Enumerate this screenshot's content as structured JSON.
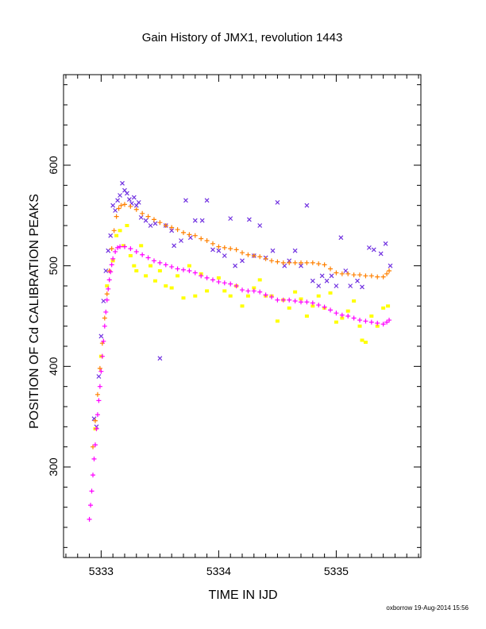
{
  "chart_data": {
    "type": "scatter",
    "title": "Gain History of JMX1, revolution 1443",
    "xlabel": "TIME IN IJD",
    "ylabel": "POSITION OF Cd CALIBRATION PEAKS",
    "footer": "oxborrow 19-Aug-2014 15:56",
    "xlim": [
      5332.68,
      5335.72
    ],
    "ylim": [
      210,
      690
    ],
    "xticks": [
      5333,
      5334,
      5335
    ],
    "yticks": [
      300,
      400,
      500,
      600
    ],
    "grid": false,
    "legend": "none",
    "series": [
      {
        "marker": "cross",
        "color": "#7030e0",
        "points": [
          [
            5332.94,
            348
          ],
          [
            5332.96,
            340
          ],
          [
            5332.98,
            390
          ],
          [
            5333.0,
            430
          ],
          [
            5333.02,
            465
          ],
          [
            5333.04,
            495
          ],
          [
            5333.06,
            515
          ],
          [
            5333.08,
            530
          ],
          [
            5333.1,
            560
          ],
          [
            5333.12,
            555
          ],
          [
            5333.14,
            565
          ],
          [
            5333.16,
            570
          ],
          [
            5333.18,
            582
          ],
          [
            5333.2,
            575
          ],
          [
            5333.22,
            572
          ],
          [
            5333.24,
            566
          ],
          [
            5333.26,
            562
          ],
          [
            5333.28,
            568
          ],
          [
            5333.3,
            560
          ],
          [
            5333.32,
            563
          ],
          [
            5333.34,
            548
          ],
          [
            5333.38,
            545
          ],
          [
            5333.42,
            540
          ],
          [
            5333.46,
            542
          ],
          [
            5333.5,
            408
          ],
          [
            5333.55,
            540
          ],
          [
            5333.6,
            535
          ],
          [
            5333.62,
            520
          ],
          [
            5333.68,
            525
          ],
          [
            5333.72,
            565
          ],
          [
            5333.76,
            528
          ],
          [
            5333.8,
            545
          ],
          [
            5333.86,
            545
          ],
          [
            5333.9,
            565
          ],
          [
            5333.95,
            516
          ],
          [
            5334.0,
            515
          ],
          [
            5334.05,
            510
          ],
          [
            5334.1,
            547
          ],
          [
            5334.14,
            500
          ],
          [
            5334.2,
            505
          ],
          [
            5334.26,
            546
          ],
          [
            5334.3,
            510
          ],
          [
            5334.35,
            540
          ],
          [
            5334.4,
            508
          ],
          [
            5334.46,
            515
          ],
          [
            5334.5,
            563
          ],
          [
            5334.56,
            500
          ],
          [
            5334.6,
            505
          ],
          [
            5334.65,
            515
          ],
          [
            5334.7,
            500
          ],
          [
            5334.75,
            560
          ],
          [
            5334.8,
            485
          ],
          [
            5334.85,
            480
          ],
          [
            5334.88,
            490
          ],
          [
            5334.92,
            485
          ],
          [
            5334.96,
            490
          ],
          [
            5335.0,
            480
          ],
          [
            5335.04,
            528
          ],
          [
            5335.08,
            495
          ],
          [
            5335.12,
            480
          ],
          [
            5335.18,
            485
          ],
          [
            5335.22,
            479
          ],
          [
            5335.28,
            518
          ],
          [
            5335.32,
            516
          ],
          [
            5335.38,
            512
          ],
          [
            5335.42,
            522
          ],
          [
            5335.46,
            500
          ]
        ]
      },
      {
        "marker": "square",
        "color": "#ffff00",
        "points": [
          [
            5332.95,
            338
          ],
          [
            5333.0,
            410
          ],
          [
            5333.05,
            480
          ],
          [
            5333.1,
            505
          ],
          [
            5333.13,
            530
          ],
          [
            5333.16,
            535
          ],
          [
            5333.19,
            520
          ],
          [
            5333.22,
            540
          ],
          [
            5333.25,
            510
          ],
          [
            5333.28,
            500
          ],
          [
            5333.3,
            495
          ],
          [
            5333.34,
            520
          ],
          [
            5333.38,
            490
          ],
          [
            5333.42,
            500
          ],
          [
            5333.46,
            485
          ],
          [
            5333.5,
            495
          ],
          [
            5333.55,
            480
          ],
          [
            5333.6,
            478
          ],
          [
            5333.65,
            490
          ],
          [
            5333.7,
            468
          ],
          [
            5333.75,
            500
          ],
          [
            5333.8,
            470
          ],
          [
            5333.85,
            492
          ],
          [
            5333.9,
            475
          ],
          [
            5334.0,
            488
          ],
          [
            5334.05,
            475
          ],
          [
            5334.1,
            470
          ],
          [
            5334.15,
            480
          ],
          [
            5334.2,
            460
          ],
          [
            5334.25,
            470
          ],
          [
            5334.3,
            478
          ],
          [
            5334.35,
            486
          ],
          [
            5334.4,
            470
          ],
          [
            5334.45,
            470
          ],
          [
            5334.5,
            445
          ],
          [
            5334.55,
            466
          ],
          [
            5334.6,
            458
          ],
          [
            5334.65,
            474
          ],
          [
            5334.7,
            467
          ],
          [
            5334.75,
            450
          ],
          [
            5334.8,
            460
          ],
          [
            5334.85,
            470
          ],
          [
            5334.9,
            458
          ],
          [
            5334.95,
            473
          ],
          [
            5335.0,
            444
          ],
          [
            5335.05,
            448
          ],
          [
            5335.1,
            455
          ],
          [
            5335.15,
            465
          ],
          [
            5335.2,
            440
          ],
          [
            5335.22,
            426
          ],
          [
            5335.25,
            424
          ],
          [
            5335.3,
            450
          ],
          [
            5335.35,
            440
          ],
          [
            5335.4,
            458
          ],
          [
            5335.44,
            460
          ]
        ]
      },
      {
        "marker": "plus",
        "color": "#ff8000",
        "points": [
          [
            5332.93,
            320
          ],
          [
            5332.95,
            346
          ],
          [
            5332.97,
            372
          ],
          [
            5332.99,
            398
          ],
          [
            5333.01,
            423
          ],
          [
            5333.03,
            448
          ],
          [
            5333.05,
            472
          ],
          [
            5333.07,
            495
          ],
          [
            5333.09,
            517
          ],
          [
            5333.11,
            535
          ],
          [
            5333.13,
            549
          ],
          [
            5333.15,
            557
          ],
          [
            5333.17,
            560
          ],
          [
            5333.2,
            561
          ],
          [
            5333.25,
            559
          ],
          [
            5333.3,
            556
          ],
          [
            5333.35,
            552
          ],
          [
            5333.4,
            549
          ],
          [
            5333.45,
            546
          ],
          [
            5333.5,
            543
          ],
          [
            5333.55,
            540
          ],
          [
            5333.6,
            538
          ],
          [
            5333.65,
            536
          ],
          [
            5333.7,
            533
          ],
          [
            5333.75,
            531
          ],
          [
            5333.8,
            530
          ],
          [
            5333.85,
            527
          ],
          [
            5333.9,
            525
          ],
          [
            5333.95,
            522
          ],
          [
            5334.0,
            519
          ],
          [
            5334.05,
            518
          ],
          [
            5334.1,
            517
          ],
          [
            5334.15,
            516
          ],
          [
            5334.2,
            513
          ],
          [
            5334.25,
            511
          ],
          [
            5334.3,
            510
          ],
          [
            5334.35,
            509
          ],
          [
            5334.4,
            507
          ],
          [
            5334.45,
            505
          ],
          [
            5334.5,
            504
          ],
          [
            5334.55,
            503
          ],
          [
            5334.6,
            503
          ],
          [
            5334.65,
            503
          ],
          [
            5334.7,
            503
          ],
          [
            5334.75,
            503
          ],
          [
            5334.8,
            503
          ],
          [
            5334.85,
            502
          ],
          [
            5334.9,
            501
          ],
          [
            5334.95,
            497
          ],
          [
            5335.0,
            493
          ],
          [
            5335.05,
            492
          ],
          [
            5335.1,
            492
          ],
          [
            5335.15,
            491
          ],
          [
            5335.2,
            491
          ],
          [
            5335.25,
            490
          ],
          [
            5335.3,
            490
          ],
          [
            5335.35,
            489
          ],
          [
            5335.4,
            489
          ],
          [
            5335.43,
            492
          ],
          [
            5335.45,
            495
          ]
        ]
      },
      {
        "marker": "plus",
        "color": "#ff00ff",
        "points": [
          [
            5332.9,
            248
          ],
          [
            5332.91,
            262
          ],
          [
            5332.92,
            276
          ],
          [
            5332.93,
            292
          ],
          [
            5332.94,
            308
          ],
          [
            5332.95,
            322
          ],
          [
            5332.96,
            338
          ],
          [
            5332.97,
            352
          ],
          [
            5332.98,
            366
          ],
          [
            5332.99,
            380
          ],
          [
            5333.0,
            395
          ],
          [
            5333.01,
            410
          ],
          [
            5333.02,
            425
          ],
          [
            5333.03,
            440
          ],
          [
            5333.04,
            454
          ],
          [
            5333.05,
            466
          ],
          [
            5333.06,
            477
          ],
          [
            5333.07,
            486
          ],
          [
            5333.08,
            494
          ],
          [
            5333.09,
            501
          ],
          [
            5333.1,
            507
          ],
          [
            5333.12,
            514
          ],
          [
            5333.14,
            518
          ],
          [
            5333.16,
            519
          ],
          [
            5333.2,
            519
          ],
          [
            5333.25,
            517
          ],
          [
            5333.3,
            514
          ],
          [
            5333.35,
            511
          ],
          [
            5333.4,
            508
          ],
          [
            5333.45,
            505
          ],
          [
            5333.5,
            503
          ],
          [
            5333.55,
            501
          ],
          [
            5333.6,
            499
          ],
          [
            5333.65,
            497
          ],
          [
            5333.7,
            496
          ],
          [
            5333.75,
            495
          ],
          [
            5333.8,
            493
          ],
          [
            5333.85,
            490
          ],
          [
            5333.9,
            488
          ],
          [
            5333.95,
            486
          ],
          [
            5334.0,
            484
          ],
          [
            5334.05,
            483
          ],
          [
            5334.1,
            482
          ],
          [
            5334.15,
            480
          ],
          [
            5334.2,
            476
          ],
          [
            5334.25,
            475
          ],
          [
            5334.3,
            475
          ],
          [
            5334.35,
            474
          ],
          [
            5334.4,
            471
          ],
          [
            5334.45,
            469
          ],
          [
            5334.5,
            466
          ],
          [
            5334.55,
            466
          ],
          [
            5334.6,
            466
          ],
          [
            5334.65,
            465
          ],
          [
            5334.7,
            464
          ],
          [
            5334.75,
            464
          ],
          [
            5334.8,
            463
          ],
          [
            5334.85,
            461
          ],
          [
            5334.9,
            459
          ],
          [
            5334.95,
            456
          ],
          [
            5335.0,
            453
          ],
          [
            5335.05,
            451
          ],
          [
            5335.1,
            450
          ],
          [
            5335.15,
            448
          ],
          [
            5335.2,
            446
          ],
          [
            5335.25,
            445
          ],
          [
            5335.3,
            444
          ],
          [
            5335.35,
            443
          ],
          [
            5335.4,
            442
          ],
          [
            5335.43,
            444
          ],
          [
            5335.45,
            446
          ]
        ]
      }
    ]
  }
}
